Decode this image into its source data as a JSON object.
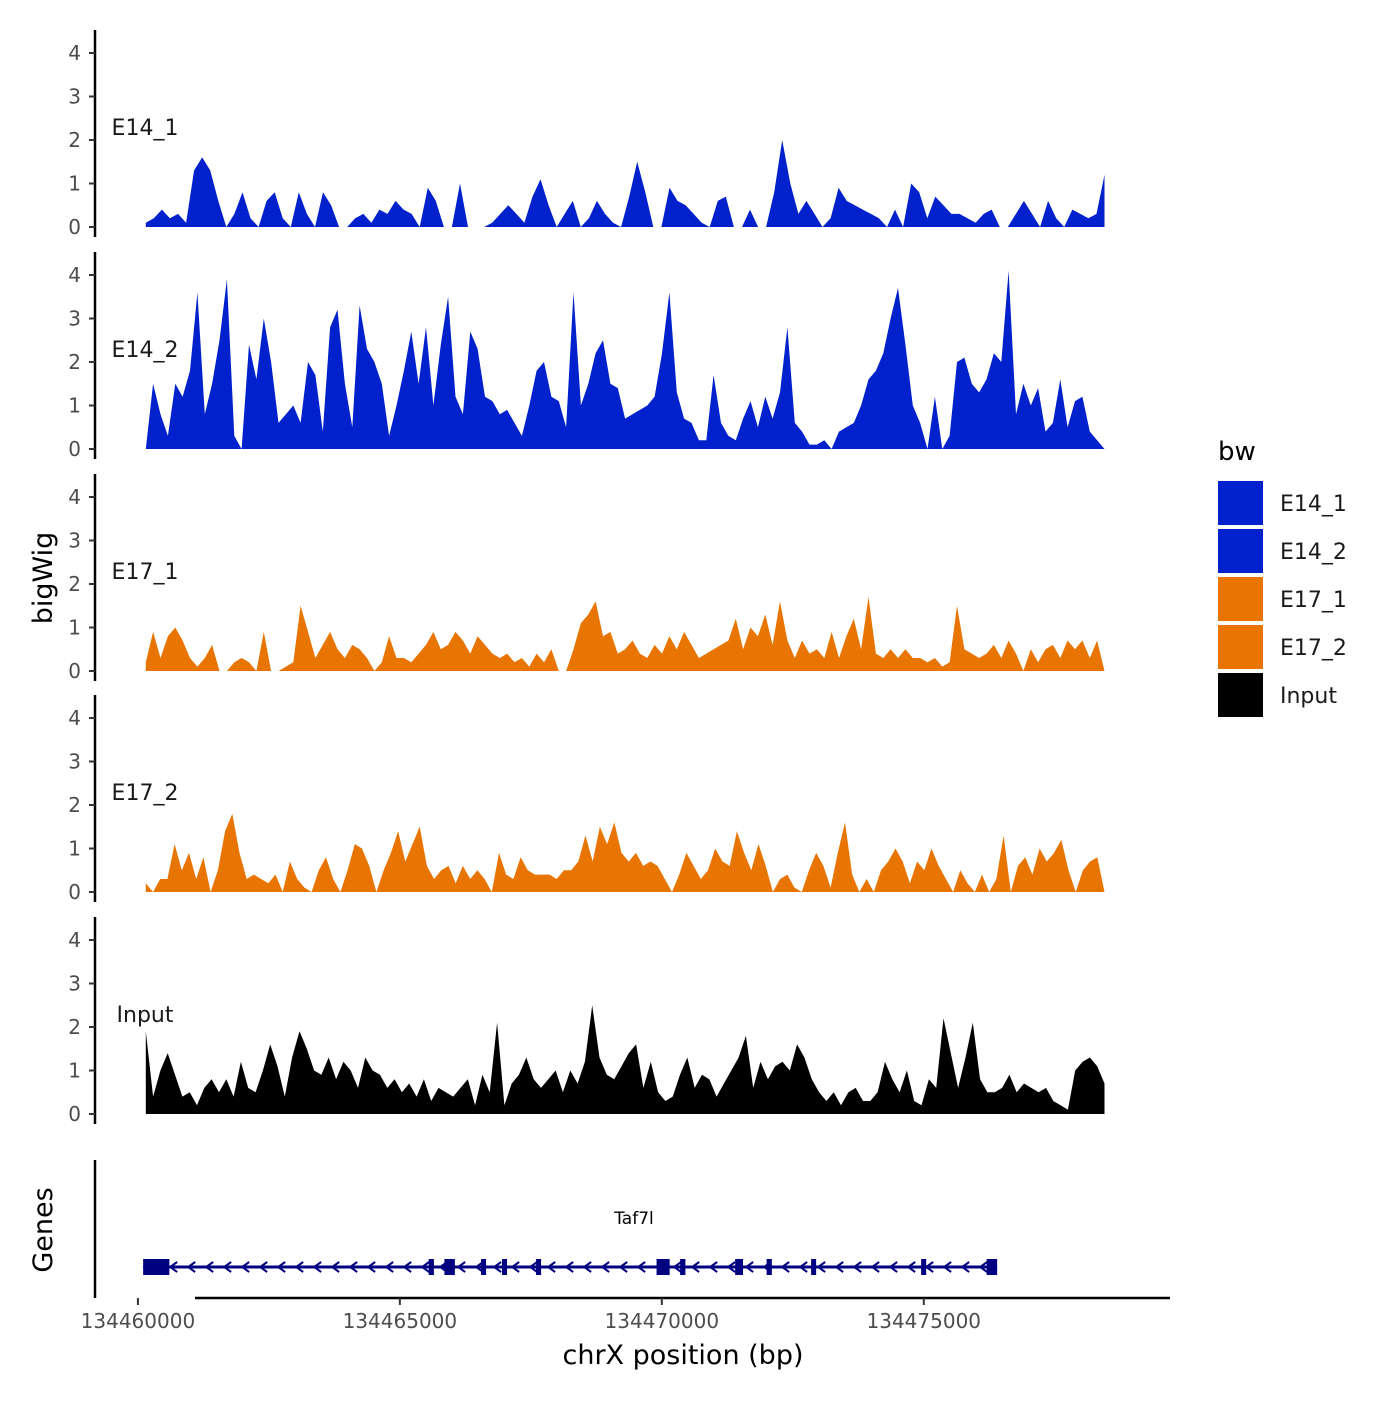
{
  "chart_data": {
    "type": "area",
    "title": "",
    "ylabel": "bigWig",
    "xlabel": "chrX position (bp)",
    "ylim": [
      0,
      4.4
    ],
    "yticks": [
      0,
      1,
      2,
      3,
      4
    ],
    "xlim": [
      134459200,
      134479700
    ],
    "xticks": [
      {
        "value": 134460000,
        "label": "134460000"
      },
      {
        "value": 134465000,
        "label": "134465000"
      },
      {
        "value": 134470000,
        "label": "134470000"
      },
      {
        "value": 134475000,
        "label": "134475000"
      }
    ],
    "x_start": 134460150,
    "x_end": 134478450,
    "legend": {
      "title": "bw",
      "position": "right",
      "entries": [
        {
          "label": "E14_1",
          "color": "#0021CC"
        },
        {
          "label": "E14_2",
          "color": "#0021CC"
        },
        {
          "label": "E17_1",
          "color": "#E87502"
        },
        {
          "label": "E17_2",
          "color": "#E87502"
        },
        {
          "label": "Input",
          "color": "#000000"
        }
      ]
    },
    "series": [
      {
        "name": "E14_1",
        "color": "#0021CC",
        "values": [
          0.1,
          0.2,
          0.4,
          0.2,
          0.3,
          0.1,
          1.3,
          1.6,
          1.3,
          0.6,
          0.0,
          0.3,
          0.8,
          0.2,
          0.0,
          0.6,
          0.8,
          0.2,
          0.0,
          0.8,
          0.3,
          0.0,
          0.8,
          0.5,
          0.0,
          0.0,
          0.2,
          0.3,
          0.1,
          0.4,
          0.3,
          0.6,
          0.4,
          0.3,
          0.0,
          0.9,
          0.6,
          0.0,
          0.0,
          1.0,
          0.0,
          0.0,
          0.0,
          0.1,
          0.3,
          0.5,
          0.3,
          0.1,
          0.7,
          1.1,
          0.5,
          0.0,
          0.3,
          0.6,
          0.0,
          0.2,
          0.6,
          0.3,
          0.1,
          0.0,
          0.7,
          1.5,
          0.8,
          0.0,
          0.0,
          0.9,
          0.6,
          0.5,
          0.3,
          0.1,
          0.0,
          0.6,
          0.7,
          0.0,
          0.0,
          0.4,
          0.0,
          0.0,
          0.8,
          2.0,
          1.0,
          0.3,
          0.6,
          0.3,
          0.0,
          0.2,
          0.9,
          0.6,
          0.5,
          0.4,
          0.3,
          0.2,
          0.0,
          0.4,
          0.0,
          1.0,
          0.8,
          0.2,
          0.7,
          0.5,
          0.3,
          0.3,
          0.2,
          0.1,
          0.3,
          0.4,
          0.0,
          0.0,
          0.3,
          0.6,
          0.3,
          0.0,
          0.6,
          0.2,
          0.0,
          0.4,
          0.3,
          0.2,
          0.3,
          1.2
        ]
      },
      {
        "name": "E14_2",
        "color": "#0021CC",
        "values": [
          0.0,
          1.5,
          0.8,
          0.3,
          1.5,
          1.2,
          1.8,
          3.6,
          0.8,
          1.5,
          2.5,
          3.9,
          0.3,
          0.0,
          2.4,
          1.6,
          3.0,
          2.0,
          0.6,
          0.8,
          1.0,
          0.6,
          2.0,
          1.7,
          0.4,
          2.8,
          3.2,
          1.5,
          0.5,
          3.3,
          2.3,
          2.0,
          1.5,
          0.3,
          1.0,
          1.8,
          2.7,
          1.5,
          2.8,
          1.0,
          2.4,
          3.5,
          1.2,
          0.8,
          2.7,
          2.3,
          1.2,
          1.1,
          0.8,
          0.9,
          0.6,
          0.3,
          1.0,
          1.8,
          2.0,
          1.2,
          1.1,
          0.5,
          3.6,
          1.0,
          1.5,
          2.2,
          2.5,
          1.5,
          1.4,
          0.7,
          0.8,
          0.9,
          1.0,
          1.2,
          2.2,
          3.6,
          1.3,
          0.7,
          0.6,
          0.2,
          0.2,
          1.7,
          0.6,
          0.3,
          0.2,
          0.7,
          1.1,
          0.5,
          1.2,
          0.7,
          1.3,
          2.8,
          0.6,
          0.4,
          0.1,
          0.1,
          0.2,
          0.0,
          0.4,
          0.5,
          0.6,
          1.0,
          1.6,
          1.8,
          2.2,
          3.0,
          3.7,
          2.4,
          1.0,
          0.6,
          0.0,
          1.2,
          0.0,
          0.3,
          2.0,
          2.1,
          1.5,
          1.3,
          1.6,
          2.2,
          2.0,
          4.1,
          0.8,
          1.5,
          1.0,
          1.4,
          0.4,
          0.6,
          1.6,
          0.5,
          1.1,
          1.2,
          0.4,
          0.2,
          0.0
        ]
      },
      {
        "name": "E17_1",
        "color": "#E87502",
        "values": [
          0.2,
          0.9,
          0.3,
          0.8,
          1.0,
          0.7,
          0.3,
          0.1,
          0.3,
          0.6,
          0.0,
          0.0,
          0.2,
          0.3,
          0.2,
          0.0,
          0.9,
          0.0,
          0.0,
          0.1,
          0.2,
          1.5,
          0.9,
          0.3,
          0.6,
          0.9,
          0.5,
          0.3,
          0.6,
          0.5,
          0.3,
          0.0,
          0.2,
          0.8,
          0.3,
          0.3,
          0.2,
          0.4,
          0.6,
          0.9,
          0.5,
          0.6,
          0.9,
          0.7,
          0.4,
          0.8,
          0.6,
          0.4,
          0.3,
          0.4,
          0.2,
          0.3,
          0.1,
          0.4,
          0.2,
          0.5,
          0.0,
          0.0,
          0.5,
          1.1,
          1.3,
          1.6,
          0.8,
          0.9,
          0.4,
          0.5,
          0.7,
          0.4,
          0.3,
          0.6,
          0.4,
          0.8,
          0.5,
          0.9,
          0.6,
          0.3,
          0.4,
          0.5,
          0.6,
          0.7,
          1.2,
          0.5,
          1.0,
          0.8,
          1.3,
          0.6,
          1.6,
          0.7,
          0.3,
          0.7,
          0.4,
          0.5,
          0.3,
          0.9,
          0.3,
          0.8,
          1.2,
          0.5,
          1.7,
          0.4,
          0.3,
          0.5,
          0.3,
          0.5,
          0.3,
          0.3,
          0.2,
          0.3,
          0.1,
          0.2,
          1.5,
          0.5,
          0.4,
          0.3,
          0.4,
          0.6,
          0.3,
          0.7,
          0.4,
          0.0,
          0.5,
          0.2,
          0.5,
          0.6,
          0.3,
          0.7,
          0.5,
          0.7,
          0.3,
          0.7,
          0.0
        ]
      },
      {
        "name": "E17_2",
        "color": "#E87502",
        "values": [
          0.2,
          0.0,
          0.3,
          0.3,
          1.1,
          0.5,
          0.9,
          0.3,
          0.8,
          0.0,
          0.5,
          1.4,
          1.8,
          0.9,
          0.3,
          0.4,
          0.3,
          0.2,
          0.4,
          0.0,
          0.7,
          0.3,
          0.1,
          0.0,
          0.5,
          0.8,
          0.3,
          0.0,
          0.5,
          1.1,
          1.0,
          0.6,
          0.0,
          0.5,
          0.9,
          1.4,
          0.7,
          1.1,
          1.5,
          0.6,
          0.3,
          0.5,
          0.6,
          0.2,
          0.6,
          0.3,
          0.5,
          0.3,
          0.0,
          0.9,
          0.4,
          0.3,
          0.8,
          0.5,
          0.4,
          0.4,
          0.4,
          0.3,
          0.5,
          0.5,
          0.7,
          1.3,
          0.7,
          1.5,
          1.1,
          1.6,
          0.9,
          0.7,
          0.9,
          0.6,
          0.7,
          0.6,
          0.3,
          0.0,
          0.4,
          0.9,
          0.6,
          0.3,
          0.5,
          1.0,
          0.7,
          0.6,
          1.4,
          0.9,
          0.5,
          1.1,
          0.6,
          0.0,
          0.3,
          0.4,
          0.1,
          0.0,
          0.5,
          0.9,
          0.6,
          0.1,
          0.9,
          1.6,
          0.4,
          0.0,
          0.3,
          0.0,
          0.5,
          0.7,
          1.0,
          0.7,
          0.2,
          0.7,
          0.5,
          1.0,
          0.6,
          0.3,
          0.0,
          0.5,
          0.2,
          0.0,
          0.4,
          0.0,
          0.3,
          1.3,
          0.0,
          0.6,
          0.8,
          0.4,
          1.0,
          0.7,
          0.9,
          1.2,
          0.5,
          0.0,
          0.5,
          0.7,
          0.8,
          0.0
        ]
      },
      {
        "name": "Input",
        "color": "#000000",
        "values": [
          1.9,
          0.4,
          1.0,
          1.4,
          0.9,
          0.4,
          0.5,
          0.2,
          0.6,
          0.8,
          0.5,
          0.8,
          0.4,
          1.2,
          0.6,
          0.5,
          1.0,
          1.6,
          1.1,
          0.4,
          1.3,
          1.9,
          1.5,
          1.0,
          0.9,
          1.3,
          0.8,
          1.2,
          1.0,
          0.6,
          1.3,
          1.0,
          0.9,
          0.6,
          0.8,
          0.5,
          0.7,
          0.4,
          0.8,
          0.3,
          0.6,
          0.5,
          0.4,
          0.6,
          0.8,
          0.2,
          0.9,
          0.5,
          2.1,
          0.2,
          0.7,
          0.9,
          1.3,
          0.8,
          0.6,
          0.8,
          1.0,
          0.5,
          1.0,
          0.7,
          1.2,
          2.5,
          1.3,
          0.9,
          0.8,
          1.1,
          1.4,
          1.6,
          0.6,
          1.2,
          0.5,
          0.3,
          0.4,
          0.9,
          1.3,
          0.6,
          0.9,
          0.8,
          0.4,
          0.7,
          1.0,
          1.3,
          1.8,
          0.6,
          1.2,
          0.8,
          1.1,
          1.2,
          1.0,
          1.6,
          1.3,
          0.8,
          0.5,
          0.3,
          0.5,
          0.2,
          0.5,
          0.6,
          0.3,
          0.3,
          0.5,
          1.2,
          0.8,
          0.5,
          1.0,
          0.3,
          0.2,
          0.8,
          0.6,
          2.2,
          1.4,
          0.6,
          1.3,
          2.1,
          0.8,
          0.5,
          0.5,
          0.6,
          0.9,
          0.5,
          0.7,
          0.6,
          0.5,
          0.6,
          0.3,
          0.2,
          0.1,
          1.0,
          1.2,
          1.3,
          1.1,
          0.7
        ]
      }
    ],
    "genes": {
      "ylabel": "Genes",
      "name": "Taf7l",
      "color": "#000080",
      "start": 134460100,
      "end": 134476400,
      "strand": "-",
      "exons": [
        [
          134460100,
          134460600
        ],
        [
          134465550,
          134465650
        ],
        [
          134465850,
          134466050
        ],
        [
          134466550,
          134466600
        ],
        [
          134466950,
          134467000
        ],
        [
          134467600,
          134467650
        ],
        [
          134469900,
          134470150
        ],
        [
          134470350,
          134470450
        ],
        [
          134471400,
          134471550
        ],
        [
          134472000,
          134472100
        ],
        [
          134472850,
          134472900
        ],
        [
          134474950,
          134475000
        ],
        [
          134476200,
          134476400
        ]
      ]
    }
  }
}
